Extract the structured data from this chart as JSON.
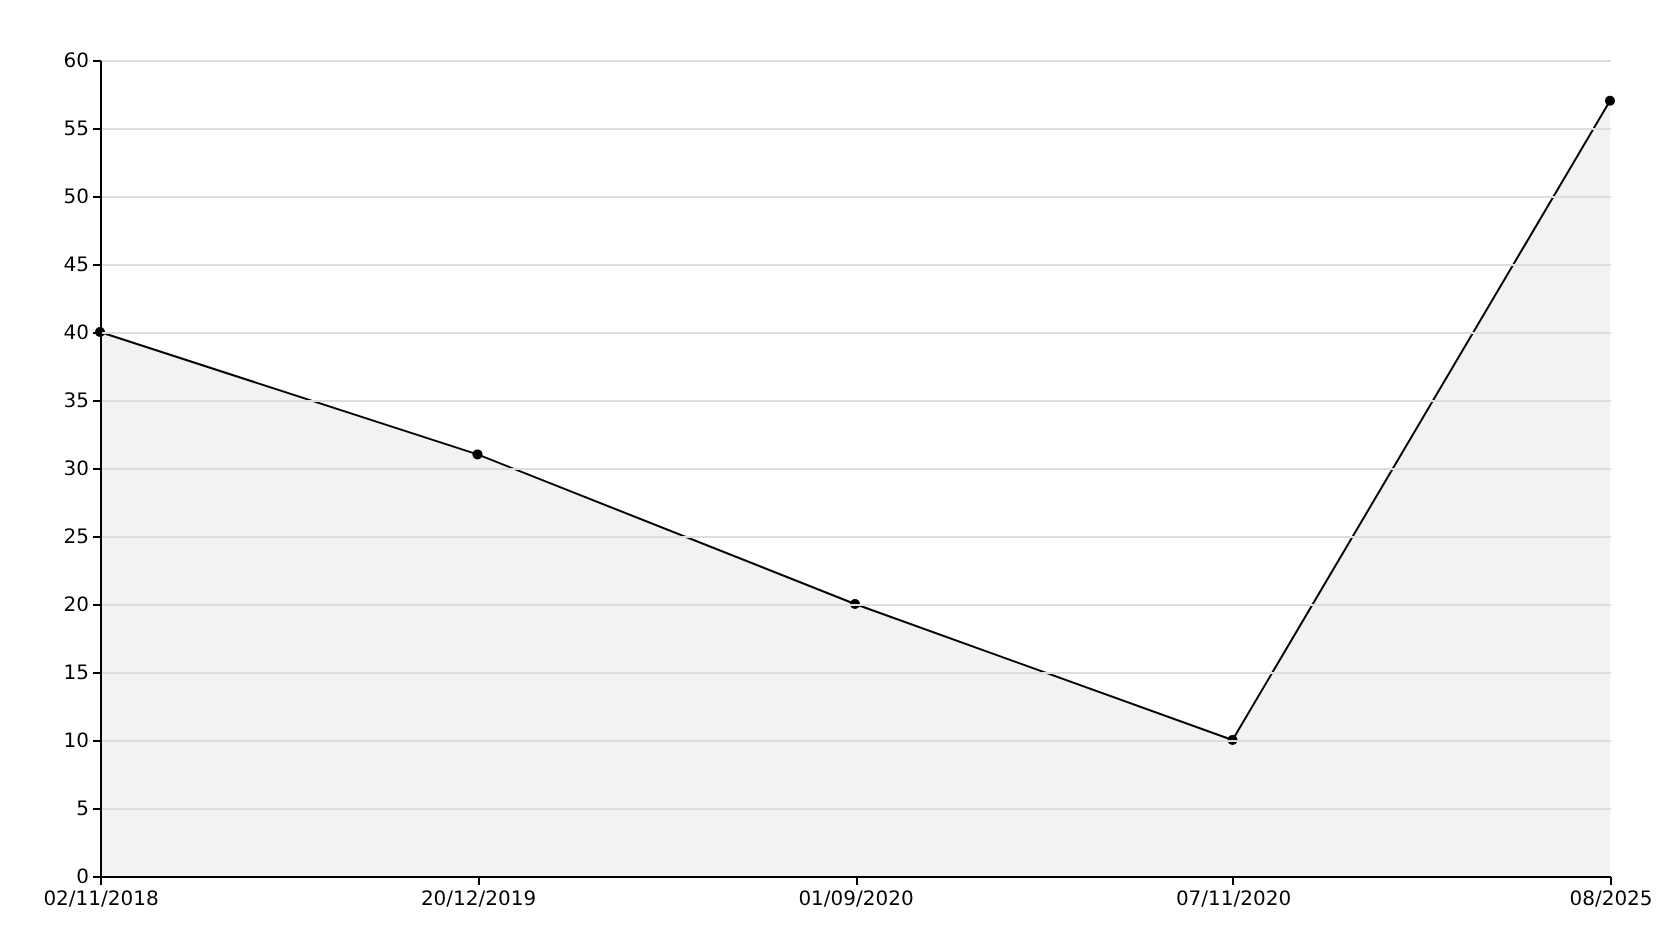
{
  "chart_data": {
    "type": "area",
    "categories": [
      "02/11/2018",
      "20/12/2019",
      "01/09/2020",
      "07/11/2020",
      "08/2025"
    ],
    "series": [
      {
        "color": "#000000",
        "values": [
          40,
          31,
          20,
          10,
          57
        ]
      }
    ],
    "ylim": [
      0,
      60
    ],
    "yticks": [
      0,
      5,
      10,
      15,
      20,
      25,
      30,
      35,
      40,
      45,
      50,
      55,
      60
    ],
    "grid": "y",
    "marker": "circle"
  }
}
